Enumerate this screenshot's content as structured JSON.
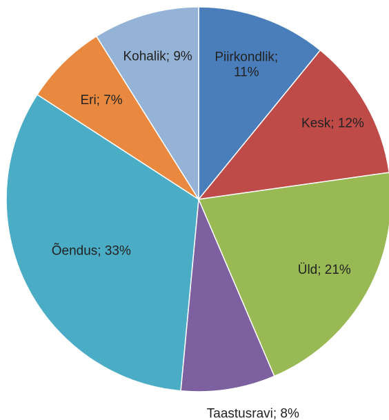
{
  "chart_data": {
    "type": "pie",
    "categories": [
      "Piirkondlik",
      "Kesk",
      "Üld",
      "Taastusravi",
      "Õendus",
      "Eri",
      "Kohalik"
    ],
    "values": [
      11,
      12,
      21,
      8,
      33,
      7,
      9
    ],
    "value_labels": [
      "Piirkondlik; 11%",
      "Kesk; 12%",
      "Üld; 21%",
      "Taastusravi; 8%",
      "Õendus; 33%",
      "Eri; 7%",
      "Kohalik; 9%"
    ],
    "colors": [
      "#4a7ebb",
      "#be4b48",
      "#98b954",
      "#7d60a0",
      "#4bacc6",
      "#e9893f",
      "#95b3d7"
    ]
  }
}
